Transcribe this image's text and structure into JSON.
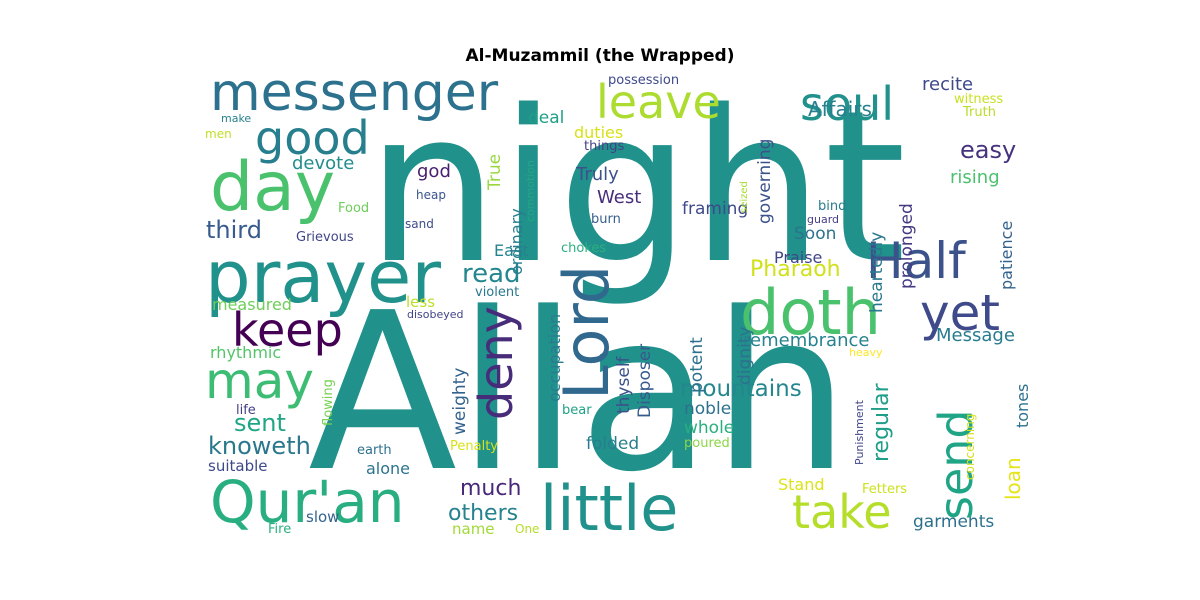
{
  "chart_data": {
    "type": "wordcloud",
    "title": "Al-Muzammil (the Wrapped)",
    "words": [
      {
        "text": "night",
        "weight": 100,
        "color": "#21918c"
      },
      {
        "text": "Allah",
        "weight": 98,
        "color": "#21918c"
      },
      {
        "text": "prayer",
        "weight": 45,
        "color": "#21918c"
      },
      {
        "text": "messenger",
        "weight": 38,
        "color": "#2c728e"
      },
      {
        "text": "Lord",
        "weight": 34,
        "color": "#31688e"
      },
      {
        "text": "little",
        "weight": 36,
        "color": "#21918c"
      },
      {
        "text": "Qur'an",
        "weight": 35,
        "color": "#28ae80"
      },
      {
        "text": "day",
        "weight": 38,
        "color": "#4ac16d"
      },
      {
        "text": "doth",
        "weight": 34,
        "color": "#4ac16d"
      },
      {
        "text": "Half",
        "weight": 30,
        "color": "#3b528b"
      },
      {
        "text": "yet",
        "weight": 30,
        "color": "#3e4a89"
      },
      {
        "text": "soul",
        "weight": 29,
        "color": "#21918c"
      },
      {
        "text": "leave",
        "weight": 29,
        "color": "#addc30"
      },
      {
        "text": "good",
        "weight": 29,
        "color": "#277f8e"
      },
      {
        "text": "keep",
        "weight": 29,
        "color": "#440154"
      },
      {
        "text": "may",
        "weight": 29,
        "color": "#3dbc74"
      },
      {
        "text": "take",
        "weight": 28,
        "color": "#b5de2b"
      },
      {
        "text": "send",
        "weight": 28,
        "color": "#20a486"
      },
      {
        "text": "deny",
        "weight": 28,
        "color": "#472c7a"
      },
      {
        "text": "read",
        "weight": 17,
        "color": "#24868e"
      },
      {
        "text": "easy",
        "weight": 15,
        "color": "#46327e"
      },
      {
        "text": "much",
        "weight": 15,
        "color": "#482878"
      },
      {
        "text": "others",
        "weight": 15,
        "color": "#26828e"
      },
      {
        "text": "mountains",
        "weight": 15,
        "color": "#24878e"
      },
      {
        "text": "third",
        "weight": 15,
        "color": "#375b8d"
      },
      {
        "text": "sent",
        "weight": 15,
        "color": "#21a685"
      },
      {
        "text": "knoweth",
        "weight": 15,
        "color": "#2a788e"
      },
      {
        "text": "Pharaoh",
        "weight": 14,
        "color": "#d0e11c"
      },
      {
        "text": "regular",
        "weight": 14,
        "color": "#1f9e89"
      },
      {
        "text": "loan",
        "weight": 14,
        "color": "#e5e419"
      },
      {
        "text": "garments",
        "weight": 13,
        "color": "#2d708e"
      },
      {
        "text": "Stand",
        "weight": 12,
        "color": "#dde318"
      },
      {
        "text": "recite",
        "weight": 13,
        "color": "#3e4989"
      },
      {
        "text": "Affairs",
        "weight": 13,
        "color": "#27808e"
      },
      {
        "text": "rising",
        "weight": 13,
        "color": "#4ac16d"
      },
      {
        "text": "devote",
        "weight": 12,
        "color": "#228d8d"
      },
      {
        "text": "god",
        "weight": 13,
        "color": "#482071"
      },
      {
        "text": "Truly",
        "weight": 13,
        "color": "#3b528b"
      },
      {
        "text": "West",
        "weight": 13,
        "color": "#472d7b"
      },
      {
        "text": "True",
        "weight": 12,
        "color": "#98d83e"
      },
      {
        "text": "duties",
        "weight": 12,
        "color": "#d8e219"
      },
      {
        "text": "deal",
        "weight": 12,
        "color": "#1f9f88"
      },
      {
        "text": "governing",
        "weight": 12,
        "color": "#3b528b"
      },
      {
        "text": "framing",
        "weight": 12,
        "color": "#3e4a89"
      },
      {
        "text": "heartedly",
        "weight": 12,
        "color": "#2a788e"
      },
      {
        "text": "prolonged",
        "weight": 12,
        "color": "#443983"
      },
      {
        "text": "patience",
        "weight": 12,
        "color": "#33638d"
      },
      {
        "text": "Praise",
        "weight": 12,
        "color": "#404688"
      },
      {
        "text": "Soon",
        "weight": 12,
        "color": "#2c738e"
      },
      {
        "text": "East",
        "weight": 12,
        "color": "#25838e"
      },
      {
        "text": "ordinary",
        "weight": 12,
        "color": "#287c8e"
      },
      {
        "text": "Message",
        "weight": 12,
        "color": "#287c8e"
      },
      {
        "text": "remembrance",
        "weight": 12,
        "color": "#26828e"
      },
      {
        "text": "occupation",
        "weight": 12,
        "color": "#287c8e"
      },
      {
        "text": "weighty",
        "weight": 12,
        "color": "#33638d"
      },
      {
        "text": "thyself",
        "weight": 12,
        "color": "#3b528b"
      },
      {
        "text": "Disposer",
        "weight": 12,
        "color": "#375a8c"
      },
      {
        "text": "potent",
        "weight": 12,
        "color": "#2e6f8e"
      },
      {
        "text": "dignity",
        "weight": 12,
        "color": "#2c728e"
      },
      {
        "text": "noble",
        "weight": 12,
        "color": "#2c718e"
      },
      {
        "text": "whole",
        "weight": 12,
        "color": "#29af7f"
      },
      {
        "text": "folded",
        "weight": 12,
        "color": "#277f8e"
      },
      {
        "text": "alone",
        "weight": 12,
        "color": "#2c738e"
      },
      {
        "text": "tones",
        "weight": 12,
        "color": "#2c718e"
      },
      {
        "text": "measured",
        "weight": 11,
        "color": "#6ece58"
      },
      {
        "text": "rhythmic",
        "weight": 11,
        "color": "#52c569"
      },
      {
        "text": "suitable",
        "weight": 11,
        "color": "#3e4989"
      },
      {
        "text": "less",
        "weight": 10,
        "color": "#bddf26"
      },
      {
        "text": "slow",
        "weight": 10,
        "color": "#33638d"
      },
      {
        "text": "name",
        "weight": 10,
        "color": "#a2da37"
      },
      {
        "text": "possession",
        "weight": 9,
        "color": "#3e4a89"
      },
      {
        "text": "things",
        "weight": 9,
        "color": "#424086"
      },
      {
        "text": "Truth",
        "weight": 8,
        "color": "#b8de29"
      },
      {
        "text": "witness",
        "weight": 8,
        "color": "#cae11f"
      },
      {
        "text": "make",
        "weight": 7,
        "color": "#27808e"
      },
      {
        "text": "men",
        "weight": 8,
        "color": "#c0df25"
      },
      {
        "text": "heap",
        "weight": 8,
        "color": "#39558c"
      },
      {
        "text": "Food",
        "weight": 8,
        "color": "#6ece58"
      },
      {
        "text": "sand",
        "weight": 8,
        "color": "#3e4c8a"
      },
      {
        "text": "Grievous",
        "weight": 8,
        "color": "#404588"
      },
      {
        "text": "burn",
        "weight": 8,
        "color": "#355f8d"
      },
      {
        "text": "chokes",
        "weight": 8,
        "color": "#2ab07f"
      },
      {
        "text": "violent",
        "weight": 8,
        "color": "#2a788e"
      },
      {
        "text": "disobeyed",
        "weight": 7,
        "color": "#414487"
      },
      {
        "text": "commotion",
        "weight": 6,
        "color": "#22a785"
      },
      {
        "text": "seized",
        "weight": 6,
        "color": "#a8db34"
      },
      {
        "text": "bind",
        "weight": 8,
        "color": "#287c8e"
      },
      {
        "text": "guard",
        "weight": 7,
        "color": "#433e85"
      },
      {
        "text": "heavy",
        "weight": 7,
        "color": "#fde725"
      },
      {
        "text": "life",
        "weight": 8,
        "color": "#424186"
      },
      {
        "text": "flowing",
        "weight": 7,
        "color": "#77d153"
      },
      {
        "text": "bear",
        "weight": 8,
        "color": "#1fa287"
      },
      {
        "text": "earth",
        "weight": 8,
        "color": "#2d708e"
      },
      {
        "text": "Penalty",
        "weight": 8,
        "color": "#d8e219"
      },
      {
        "text": "poured",
        "weight": 8,
        "color": "#8bd646"
      },
      {
        "text": "Punishment",
        "weight": 6,
        "color": "#404688"
      },
      {
        "text": "concerning",
        "weight": 7,
        "color": "#d5e21a"
      },
      {
        "text": "Fetters",
        "weight": 8,
        "color": "#cde11d"
      },
      {
        "text": "Fire",
        "weight": 8,
        "color": "#2ab07f"
      },
      {
        "text": "One",
        "weight": 7,
        "color": "#b5de2b"
      }
    ]
  }
}
